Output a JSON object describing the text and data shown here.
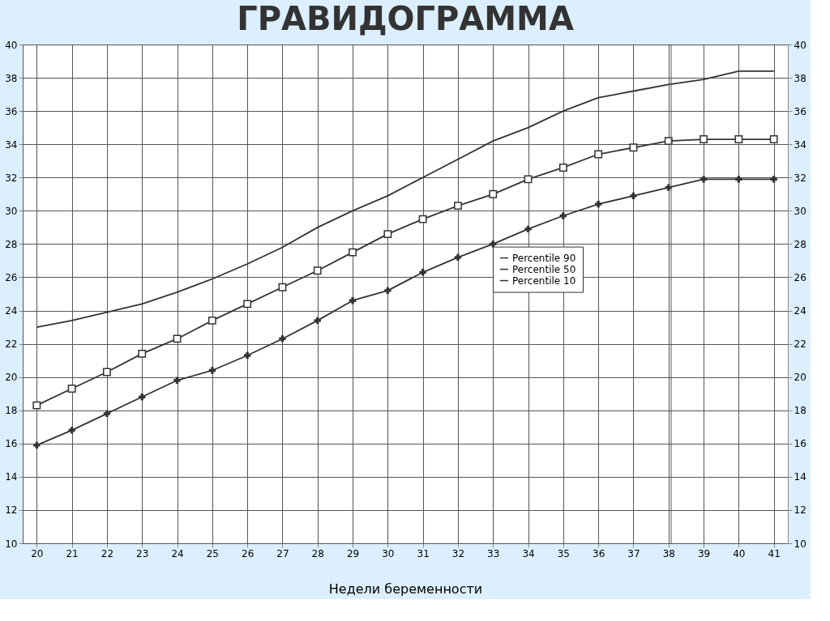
{
  "chart_data": {
    "type": "line",
    "title": "ГРАВИДОГРАММА",
    "xlabel": "Недели беременности",
    "x": [
      20,
      21,
      22,
      23,
      24,
      25,
      26,
      27,
      28,
      29,
      30,
      31,
      32,
      33,
      34,
      35,
      36,
      37,
      38,
      39,
      40,
      41
    ],
    "series": [
      {
        "name": "Percentile 90",
        "color": "#333333",
        "marker": "none",
        "values": [
          23.0,
          23.4,
          23.9,
          24.4,
          25.1,
          25.9,
          26.8,
          27.8,
          29.0,
          30.0,
          30.9,
          32.0,
          33.1,
          34.2,
          35.0,
          36.0,
          36.8,
          37.2,
          37.6,
          37.9,
          38.4,
          38.4
        ]
      },
      {
        "name": "Percentile 50",
        "color": "#333333",
        "marker": "square",
        "values": [
          18.3,
          19.3,
          20.3,
          21.4,
          22.3,
          23.4,
          24.4,
          25.4,
          26.4,
          27.5,
          28.6,
          29.5,
          30.3,
          31.0,
          31.9,
          32.6,
          33.4,
          33.8,
          34.2,
          34.3,
          34.3,
          34.3
        ]
      },
      {
        "name": "Percentile 10",
        "color": "#333333",
        "marker": "cross",
        "values": [
          15.9,
          16.8,
          17.8,
          18.8,
          19.8,
          20.4,
          21.3,
          22.3,
          23.4,
          24.6,
          25.2,
          26.3,
          27.2,
          28.0,
          28.9,
          29.7,
          30.4,
          30.9,
          31.4,
          31.9,
          31.9,
          31.9
        ]
      }
    ],
    "xlim": [
      19.6,
      41.4
    ],
    "xticks": [
      20,
      21,
      22,
      23,
      24,
      25,
      26,
      27,
      28,
      29,
      30,
      31,
      32,
      33,
      34,
      35,
      36,
      37,
      38,
      39,
      40,
      41
    ],
    "ylim": [
      10,
      40
    ],
    "yticks": [
      10,
      12,
      14,
      16,
      18,
      20,
      22,
      24,
      26,
      28,
      30,
      32,
      34,
      36,
      38,
      40
    ],
    "y2lim": [
      10,
      40
    ],
    "y2ticks": [
      10,
      12,
      14,
      16,
      18,
      20,
      22,
      24,
      26,
      28,
      30,
      32,
      34,
      36,
      38,
      40
    ],
    "grid": true,
    "legend": "right",
    "line_style": "solid"
  }
}
